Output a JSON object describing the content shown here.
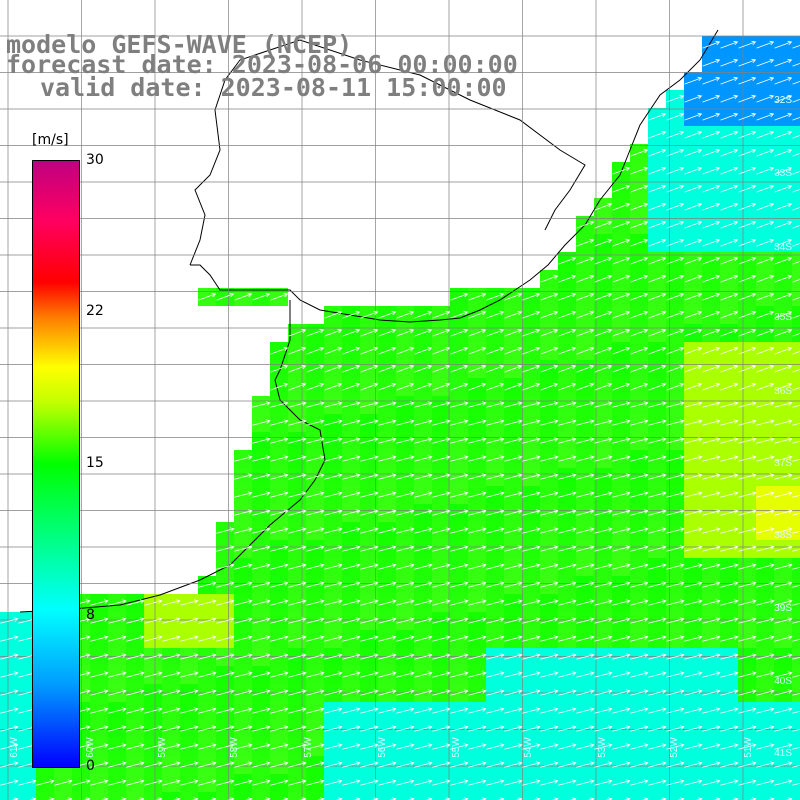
{
  "title": {
    "line1": "modelo GEFS-WAVE (NCEP)",
    "line2": "forecast date: 2023-08-06 00:00:00",
    "line3": "valid date: 2023-08-11 15:00:00"
  },
  "colorbar": {
    "unit": "[m/s]",
    "ticks": [
      "30",
      "22",
      "15",
      "8",
      "0"
    ],
    "tick_values": [
      30,
      22,
      15,
      8,
      0
    ],
    "min": 0,
    "max": 30,
    "colors": [
      "#0000ff",
      "#00a0ff",
      "#00ffff",
      "#00ff00",
      "#c0ff00",
      "#ffff00",
      "#ff8000",
      "#ff0000",
      "#ff0060",
      "#c00080"
    ]
  },
  "axes": {
    "lat_labels": [
      "32S",
      "33S",
      "34S",
      "35S",
      "36S",
      "37S",
      "38S",
      "39S",
      "40S",
      "41S"
    ],
    "lon_labels": [
      "61W",
      "60W",
      "59W",
      "58W",
      "57W",
      "56W",
      "55W",
      "54W",
      "53W",
      "52W",
      "51W"
    ]
  },
  "map": {
    "land_color": "#ffffff",
    "grid_color": "#808080",
    "coast_color": "#000000",
    "arrow_color": "#ffffff"
  }
}
